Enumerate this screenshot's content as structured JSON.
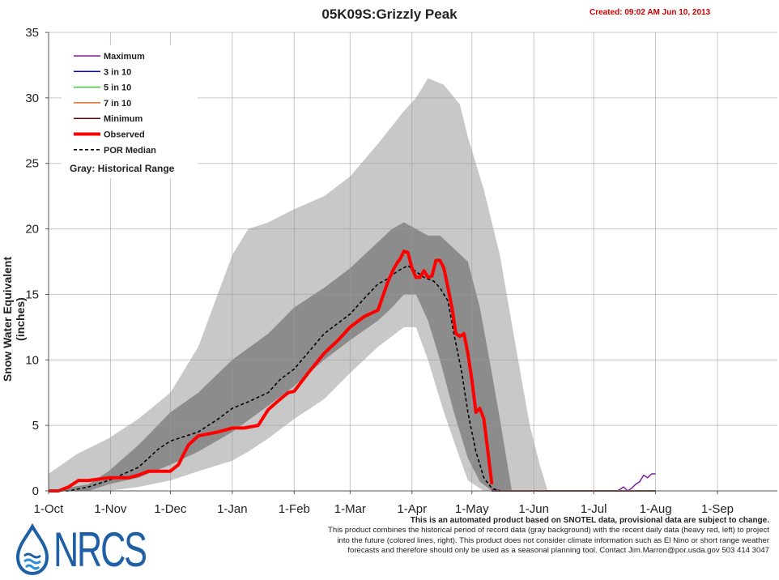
{
  "header": {
    "title": "05K09S:Grizzly Peak",
    "created": "Created: 09:02 AM Jun 10, 2013"
  },
  "footer": {
    "disclaimer_lead": "This is an automated product based on SNOTEL data, provisional data are subject to change.",
    "disclaimer_lines": [
      "This product combines the historical period of record data (gray background) with the recent daily data (heavy red, left) to project",
      "into the future (colored lines, right). This product does not consider climate information such as El Nino or short range weather",
      "forecasts and therefore should only be used as a seasonal planning tool. Contact Jim.Marron@por.usda.gov 503 414 3047"
    ],
    "logo_text": "NRCS"
  },
  "colors": {
    "maximum": "#7b1fa2",
    "three_in_ten": "#0000cc",
    "five_in_ten": "#33cc33",
    "seven_in_ten": "#e07020",
    "minimum": "#6b0000",
    "observed": "#ff0000",
    "median": "#000000",
    "range_outer": "#c8c8c8",
    "range_inner": "#8c8c8c",
    "created_text": "#cc0000",
    "nrcs_blue": "#1f5fa6"
  },
  "chart_data": {
    "type": "line",
    "title": "05K09S:Grizzly Peak",
    "ylabel": "Snow Water Equivalent (inches)",
    "xlabel": "",
    "ylim": [
      0,
      35
    ],
    "yticks": [
      "0",
      "5",
      "10",
      "15",
      "20",
      "25",
      "30",
      "35"
    ],
    "xticks": [
      "1-Oct",
      "1-Nov",
      "1-Dec",
      "1-Jan",
      "1-Feb",
      "1-Mar",
      "1-Apr",
      "1-May",
      "1-Jun",
      "1-Jul",
      "1-Aug",
      "1-Sep"
    ],
    "x_unit": "days since 1-Oct",
    "grid": true,
    "legend_position": "top-left",
    "legend": [
      {
        "label": "Maximum",
        "key": "maximum",
        "style": "solid"
      },
      {
        "label": "3 in 10",
        "key": "three_in_ten",
        "style": "solid"
      },
      {
        "label": "5 in 10",
        "key": "five_in_ten",
        "style": "solid"
      },
      {
        "label": "7 in 10",
        "key": "seven_in_ten",
        "style": "solid"
      },
      {
        "label": "Minimum",
        "key": "minimum",
        "style": "solid"
      },
      {
        "label": "Observed",
        "key": "observed",
        "style": "thick"
      },
      {
        "label": "POR Median",
        "key": "median",
        "style": "dashed"
      }
    ],
    "range_note": "Gray: Historical Range",
    "historical_range_outer": {
      "x": [
        0,
        14,
        30,
        45,
        61,
        75,
        92,
        100,
        110,
        123,
        138,
        151,
        165,
        178,
        184,
        190,
        198,
        206,
        210,
        218,
        226,
        234,
        241,
        246,
        250,
        262,
        280,
        304
      ],
      "low": [
        0,
        0,
        0,
        0.3,
        0.8,
        1.5,
        2.3,
        3.0,
        4.0,
        5.5,
        7.0,
        9.0,
        11.0,
        12.5,
        12.5,
        10.0,
        6.0,
        2.5,
        0.8,
        0,
        0,
        0,
        0,
        0,
        0,
        0,
        0,
        0
      ],
      "high": [
        1.3,
        2.8,
        4.0,
        5.5,
        7.5,
        11.0,
        18.0,
        20.0,
        20.5,
        21.5,
        22.5,
        24.0,
        26.5,
        29.0,
        30.0,
        31.5,
        31.0,
        29.5,
        27.0,
        23.0,
        18.0,
        11.0,
        5.0,
        2.0,
        0,
        0,
        0,
        0
      ]
    },
    "historical_range_inner": {
      "x": [
        0,
        20,
        30,
        45,
        61,
        75,
        92,
        110,
        123,
        138,
        151,
        165,
        172,
        178,
        184,
        190,
        196,
        203,
        210,
        216,
        222,
        226,
        232
      ],
      "low": [
        0,
        0,
        0.5,
        1.0,
        2.0,
        3.0,
        4.5,
        6.5,
        8.0,
        10.0,
        11.5,
        13.0,
        14.0,
        15.0,
        15.0,
        13.0,
        10.0,
        6.0,
        2.5,
        0.7,
        0,
        0,
        0
      ],
      "high": [
        0,
        0.5,
        1.5,
        3.5,
        6.0,
        7.5,
        10.0,
        12.0,
        14.0,
        15.5,
        17.0,
        19.0,
        20.0,
        20.5,
        20.0,
        19.5,
        19.5,
        18.5,
        17.5,
        14.0,
        9.0,
        5.5,
        0
      ]
    },
    "series": [
      {
        "name": "POR Median",
        "key": "median",
        "x": [
          0,
          10,
          20,
          30,
          45,
          55,
          61,
          75,
          85,
          92,
          100,
          110,
          116,
          123,
          138,
          151,
          160,
          165,
          170,
          175,
          180,
          188,
          193,
          196,
          200,
          203,
          207,
          210,
          214,
          218,
          222,
          226
        ],
        "y": [
          0,
          0,
          0.3,
          0.8,
          1.8,
          3.2,
          3.8,
          4.5,
          5.5,
          6.3,
          6.8,
          7.5,
          8.5,
          9.3,
          12.0,
          13.5,
          15.0,
          15.8,
          16.2,
          16.8,
          17.2,
          16.3,
          16.0,
          15.5,
          14.5,
          12.0,
          9.0,
          6.0,
          3.0,
          1.0,
          0.2,
          0
        ]
      },
      {
        "name": "Observed",
        "key": "observed",
        "x": [
          0,
          5,
          10,
          15,
          20,
          30,
          35,
          40,
          45,
          50,
          55,
          60,
          61,
          65,
          70,
          75,
          85,
          92,
          98,
          105,
          110,
          116,
          120,
          123,
          130,
          138,
          145,
          151,
          158,
          165,
          170,
          173,
          175,
          176,
          178,
          180,
          182,
          184,
          186,
          188,
          190,
          192,
          194,
          196,
          198,
          200,
          202,
          204,
          206,
          208,
          210,
          212,
          214,
          216,
          218,
          220,
          222
        ],
        "y": [
          0,
          0,
          0.3,
          0.8,
          0.8,
          1.0,
          1.0,
          1.0,
          1.2,
          1.5,
          1.5,
          1.5,
          1.5,
          2.0,
          3.5,
          4.2,
          4.5,
          4.8,
          4.8,
          5.0,
          6.2,
          7.0,
          7.5,
          7.6,
          9.0,
          10.5,
          11.5,
          12.5,
          13.3,
          13.8,
          16.0,
          17.0,
          17.5,
          17.7,
          18.3,
          18.2,
          17.0,
          16.3,
          16.3,
          16.8,
          16.3,
          16.4,
          17.6,
          17.6,
          17.0,
          15.5,
          14.0,
          12.0,
          11.8,
          12.0,
          10.5,
          8.5,
          6.0,
          6.3,
          5.5,
          3.0,
          0.5
        ]
      },
      {
        "name": "Maximum",
        "key": "maximum",
        "x": [
          222,
          228,
          234,
          240,
          250,
          260,
          270,
          280,
          285,
          288,
          290,
          292,
          294,
          296,
          298,
          300,
          302,
          304
        ],
        "y": [
          0.1,
          0,
          0,
          0,
          0,
          0,
          0,
          0,
          0,
          0.3,
          0,
          0.2,
          0.5,
          0.7,
          1.2,
          1.0,
          1.3,
          1.3
        ]
      },
      {
        "name": "3 in 10",
        "key": "three_in_ten",
        "x": [
          222,
          304
        ],
        "y": [
          0,
          0
        ]
      },
      {
        "name": "5 in 10",
        "key": "five_in_ten",
        "x": [
          222,
          304
        ],
        "y": [
          0,
          0
        ]
      },
      {
        "name": "7 in 10",
        "key": "seven_in_ten",
        "x": [
          222,
          304
        ],
        "y": [
          0,
          0
        ]
      },
      {
        "name": "Minimum",
        "key": "minimum",
        "x": [
          222,
          304
        ],
        "y": [
          0,
          0
        ]
      }
    ]
  }
}
